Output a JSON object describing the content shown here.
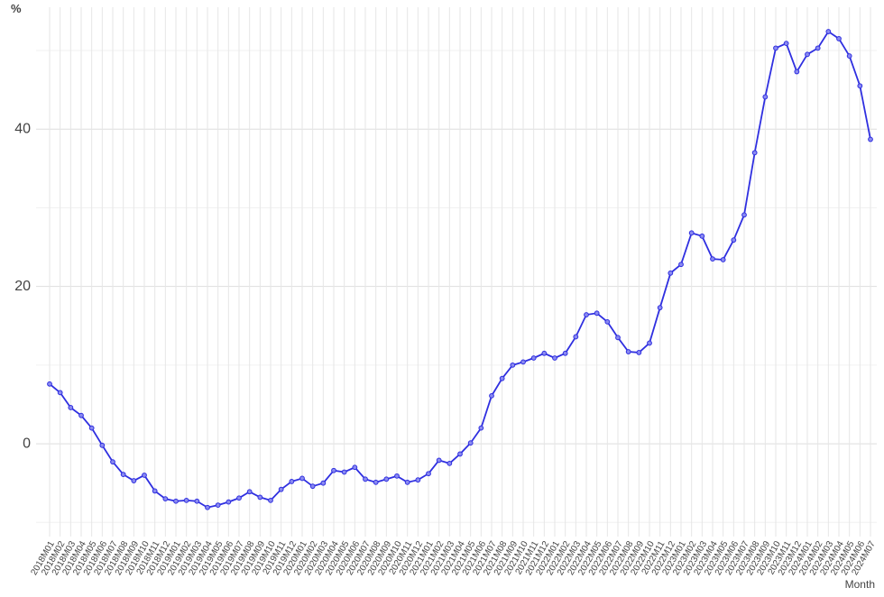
{
  "chart_data": {
    "type": "line",
    "y_label": "%",
    "x_label": "Month",
    "categories": [
      "2018M01",
      "2018M02",
      "2018M03",
      "2018M04",
      "2018M05",
      "2018M06",
      "2018M07",
      "2018M08",
      "2018M09",
      "2018M10",
      "2018M11",
      "2018M12",
      "2019M01",
      "2019M02",
      "2019M03",
      "2019M04",
      "2019M05",
      "2019M06",
      "2019M07",
      "2019M08",
      "2019M09",
      "2019M10",
      "2019M11",
      "2019M12",
      "2020M01",
      "2020M02",
      "2020M03",
      "2020M04",
      "2020M05",
      "2020M06",
      "2020M07",
      "2020M08",
      "2020M09",
      "2020M10",
      "2020M11",
      "2020M12",
      "2021M01",
      "2021M02",
      "2021M03",
      "2021M04",
      "2021M05",
      "2021M06",
      "2021M07",
      "2021M08",
      "2021M09",
      "2021M10",
      "2021M11",
      "2021M12",
      "2022M01",
      "2022M02",
      "2022M03",
      "2022M04",
      "2022M05",
      "2022M06",
      "2022M07",
      "2022M08",
      "2022M09",
      "2022M10",
      "2022M11",
      "2022M12",
      "2023M01",
      "2023M02",
      "2023M03",
      "2023M04",
      "2023M05",
      "2023M06",
      "2023M07",
      "2023M08",
      "2023M09",
      "2023M10",
      "2023M11",
      "2023M12",
      "2024M01",
      "2024M02",
      "2024M03",
      "2024M04",
      "2024M05",
      "2024M06",
      "2024M07"
    ],
    "series": [
      {
        "color": "#2f2fe0",
        "values": [
          7.6,
          6.5,
          4.6,
          3.6,
          2.0,
          -0.2,
          -2.3,
          -3.9,
          -4.7,
          -4.0,
          -6.0,
          -7.0,
          -7.3,
          -7.2,
          -7.3,
          -8.1,
          -7.8,
          -7.4,
          -6.9,
          -6.1,
          -6.8,
          -7.2,
          -5.8,
          -4.8,
          -4.4,
          -5.4,
          -5.0,
          -3.4,
          -3.6,
          -3.0,
          -4.5,
          -4.9,
          -4.5,
          -4.1,
          -4.9,
          -4.6,
          -3.8,
          -2.1,
          -2.5,
          -1.3,
          0.1,
          2.0,
          6.1,
          8.3,
          10.0,
          10.4,
          10.9,
          11.5,
          10.9,
          11.5,
          13.6,
          16.4,
          16.6,
          15.5,
          13.5,
          11.7,
          11.6,
          12.8,
          17.3,
          21.7,
          22.8,
          26.8,
          26.4,
          23.5,
          23.4,
          25.9,
          29.1,
          37.0,
          44.1,
          50.3,
          50.9,
          47.3,
          49.5,
          50.3,
          52.4,
          51.5,
          49.3,
          45.5,
          38.7
        ]
      }
    ],
    "ylim": [
      -11.8,
      55.5
    ],
    "yticks": [
      0,
      20,
      40
    ],
    "minor_yticks": [
      -10,
      10,
      30,
      50
    ],
    "grid": true
  }
}
